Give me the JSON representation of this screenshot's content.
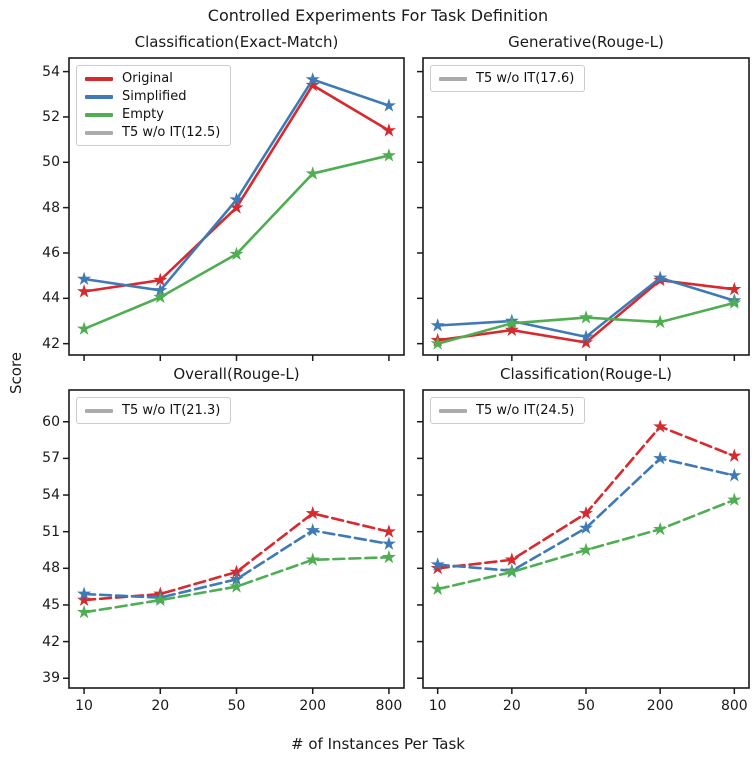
{
  "figure": {
    "suptitle": "Controlled Experiments For Task Definition",
    "xlabel": "# of Instances Per Task",
    "ylabel": "Score"
  },
  "colors": {
    "original": "#d8292e",
    "simplified": "#3e7ab5",
    "empty": "#4fad52",
    "baseline_gray": "#ababab",
    "spine": "#1a1a1a"
  },
  "chart_data": [
    {
      "id": "classification-exact-match",
      "type": "line",
      "title": "Classification(Exact-Match)",
      "categories": [
        "10",
        "20",
        "50",
        "200",
        "800"
      ],
      "series": [
        {
          "name": "Original",
          "color_key": "original",
          "linestyle": "solid",
          "marker": "star",
          "values": [
            44.3,
            44.8,
            48.0,
            53.4,
            51.4
          ]
        },
        {
          "name": "Simplified",
          "color_key": "simplified",
          "linestyle": "solid",
          "marker": "star",
          "values": [
            44.85,
            44.35,
            48.35,
            53.65,
            52.5
          ]
        },
        {
          "name": "Empty",
          "color_key": "empty",
          "linestyle": "solid",
          "marker": "star",
          "values": [
            42.65,
            44.05,
            45.95,
            49.5,
            50.3
          ]
        }
      ],
      "legend": [
        {
          "label": "Original",
          "color_key": "original"
        },
        {
          "label": "Simplified",
          "color_key": "simplified"
        },
        {
          "label": "Empty",
          "color_key": "empty"
        },
        {
          "label": "T5 w/o IT(12.5)",
          "color_key": "baseline_gray"
        }
      ],
      "legend_position": "upper-left",
      "yticks": [
        42,
        44,
        46,
        48,
        50,
        52,
        54
      ],
      "ylim": [
        41.5,
        54.6
      ],
      "grid": false,
      "show_ytick_labels": true,
      "show_xtick_labels": false
    },
    {
      "id": "generative-rouge-l",
      "type": "line",
      "title": "Generative(Rouge-L)",
      "categories": [
        "10",
        "20",
        "50",
        "200",
        "800"
      ],
      "series": [
        {
          "name": "Original",
          "color_key": "original",
          "linestyle": "solid",
          "marker": "star",
          "values": [
            42.15,
            42.6,
            42.05,
            44.8,
            44.4
          ]
        },
        {
          "name": "Simplified",
          "color_key": "simplified",
          "linestyle": "solid",
          "marker": "star",
          "values": [
            42.8,
            43.0,
            42.3,
            44.9,
            43.9
          ]
        },
        {
          "name": "Empty",
          "color_key": "empty",
          "linestyle": "solid",
          "marker": "star",
          "values": [
            42.0,
            42.9,
            43.15,
            42.95,
            43.8
          ]
        }
      ],
      "legend": [
        {
          "label": "T5 w/o IT(17.6)",
          "color_key": "baseline_gray"
        }
      ],
      "legend_position": "upper-left",
      "yticks": [
        42,
        44,
        46,
        48,
        50,
        52,
        54
      ],
      "ylim": [
        41.5,
        54.6
      ],
      "grid": false,
      "show_ytick_labels": false,
      "show_xtick_labels": false
    },
    {
      "id": "overall-rouge-l",
      "type": "line",
      "title": "Overall(Rouge-L)",
      "categories": [
        "10",
        "20",
        "50",
        "200",
        "800"
      ],
      "series": [
        {
          "name": "Original",
          "color_key": "original",
          "linestyle": "dashed",
          "marker": "star",
          "values": [
            45.4,
            45.9,
            47.7,
            52.5,
            51.0
          ]
        },
        {
          "name": "Simplified",
          "color_key": "simplified",
          "linestyle": "dashed",
          "marker": "star",
          "values": [
            45.9,
            45.6,
            47.1,
            51.1,
            50.0
          ]
        },
        {
          "name": "Empty",
          "color_key": "empty",
          "linestyle": "dashed",
          "marker": "star",
          "values": [
            44.4,
            45.4,
            46.5,
            48.7,
            48.9
          ]
        }
      ],
      "legend": [
        {
          "label": "T5 w/o IT(21.3)",
          "color_key": "baseline_gray"
        }
      ],
      "legend_position": "upper-left",
      "yticks": [
        39,
        42,
        45,
        48,
        51,
        54,
        57,
        60
      ],
      "ylim": [
        38.2,
        62.6
      ],
      "grid": false,
      "show_ytick_labels": true,
      "show_xtick_labels": true
    },
    {
      "id": "classification-rouge-l",
      "type": "line",
      "title": "Classification(Rouge-L)",
      "categories": [
        "10",
        "20",
        "50",
        "200",
        "800"
      ],
      "series": [
        {
          "name": "Original",
          "color_key": "original",
          "linestyle": "dashed",
          "marker": "star",
          "values": [
            48.0,
            48.7,
            52.5,
            59.6,
            57.2
          ]
        },
        {
          "name": "Simplified",
          "color_key": "simplified",
          "linestyle": "dashed",
          "marker": "star",
          "values": [
            48.3,
            47.8,
            51.3,
            57.0,
            55.6
          ]
        },
        {
          "name": "Empty",
          "color_key": "empty",
          "linestyle": "dashed",
          "marker": "star",
          "values": [
            46.3,
            47.7,
            49.5,
            51.2,
            53.6
          ]
        }
      ],
      "legend": [
        {
          "label": "T5 w/o IT(24.5)",
          "color_key": "baseline_gray"
        }
      ],
      "legend_position": "upper-left",
      "yticks": [
        39,
        42,
        45,
        48,
        51,
        54,
        57,
        60
      ],
      "ylim": [
        38.2,
        62.6
      ],
      "grid": false,
      "show_ytick_labels": false,
      "show_xtick_labels": true
    }
  ]
}
